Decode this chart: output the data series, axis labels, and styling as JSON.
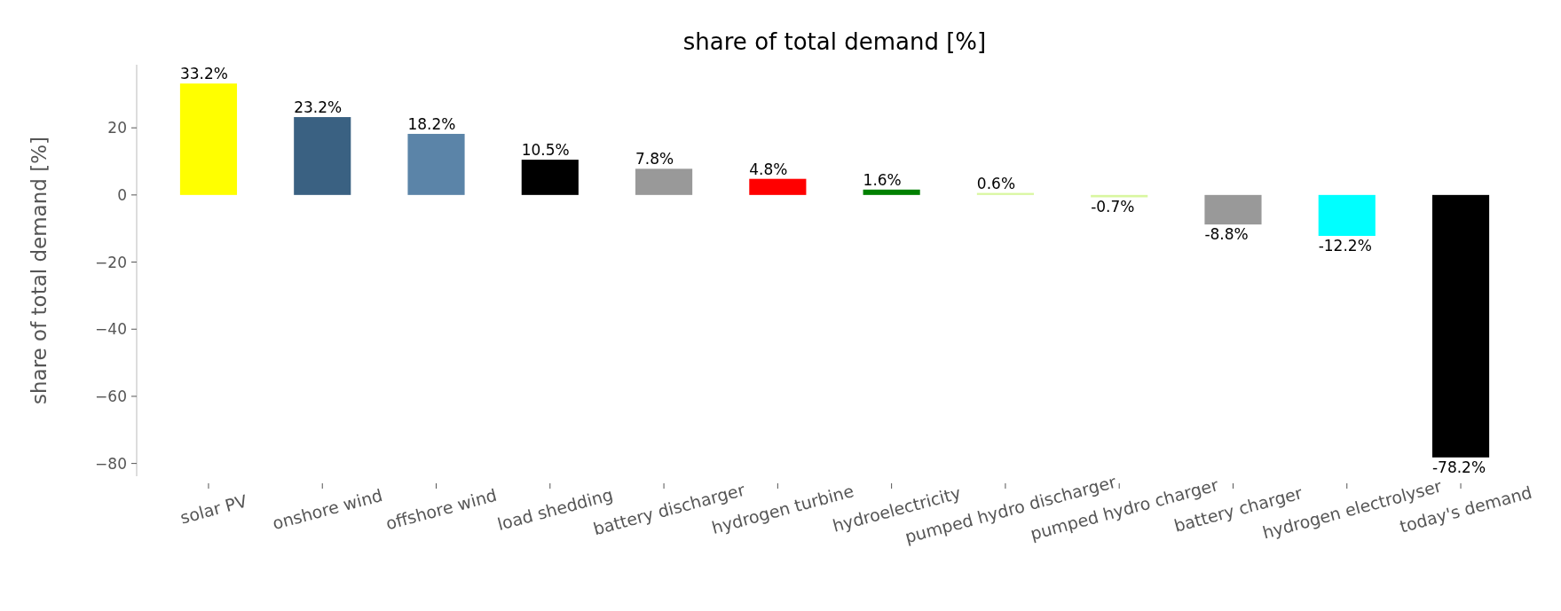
{
  "chart_data": {
    "type": "bar",
    "title": "share of total demand [%]",
    "ylabel": "share of total demand [%]",
    "categories": [
      "solar PV",
      "onshore wind",
      "offshore wind",
      "load shedding",
      "battery discharger",
      "hydrogen turbine",
      "hydroelectricity",
      "pumped hydro discharger",
      "pumped hydro charger",
      "battery charger",
      "hydrogen electrolyser",
      "today's demand"
    ],
    "values": [
      33.2,
      23.2,
      18.2,
      10.5,
      7.8,
      4.8,
      1.6,
      0.6,
      -0.7,
      -8.8,
      -12.2,
      -78.2
    ],
    "colors": [
      "#ffff00",
      "#3a6182",
      "#5b84a8",
      "#000000",
      "#999999",
      "#ff0000",
      "#008000",
      "#d9f7a0",
      "#d9f7a0",
      "#999999",
      "#00ffff",
      "#000000"
    ],
    "value_labels": [
      "33.2%",
      "23.2%",
      "18.2%",
      "10.5%",
      "7.8%",
      "4.8%",
      "1.6%",
      "0.6%",
      "-0.7%",
      "-8.8%",
      "-12.2%",
      "-78.2%"
    ],
    "ylim": [
      -83.8,
      38.8
    ],
    "yticks": [
      {
        "value": -80,
        "label": "−80"
      },
      {
        "value": -60,
        "label": "−60"
      },
      {
        "value": -40,
        "label": "−40"
      },
      {
        "value": -20,
        "label": "−20"
      },
      0,
      20
    ],
    "grid": false
  }
}
